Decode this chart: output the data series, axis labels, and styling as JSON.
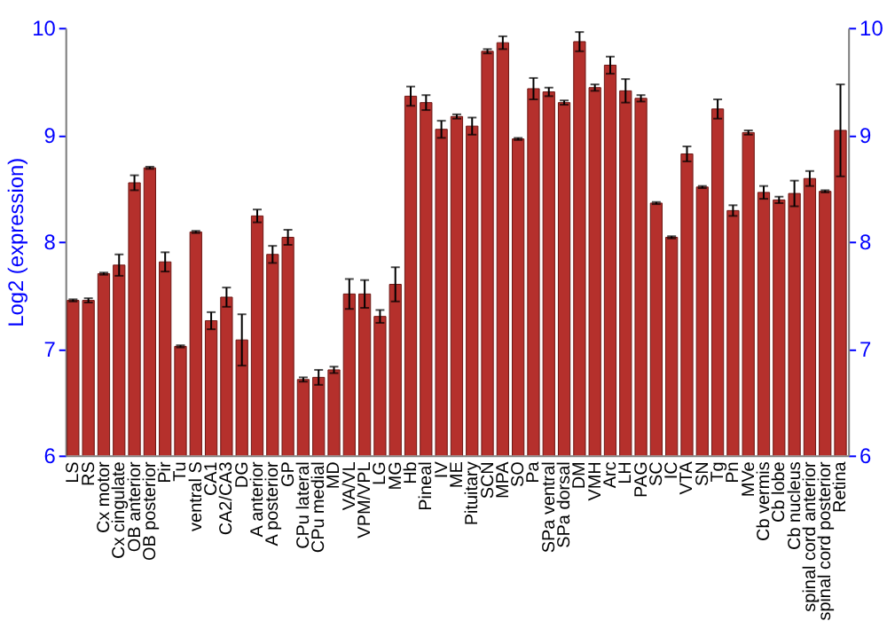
{
  "chart_data": {
    "type": "bar",
    "ylabel": "Log2 (expression)",
    "categories": [
      "LS",
      "RS",
      "Cx motor",
      "Cx cingulate",
      "OB anterior",
      "OB posterior",
      "Pir",
      "Tu",
      "ventral S",
      "CA1",
      "CA2/CA3",
      "DG",
      "A anterior",
      "A posterior",
      "GP",
      "CPu lateral",
      "CPu medial",
      "MD",
      "VA/VL",
      "VPM/VPL",
      "LG",
      "MG",
      "Hb",
      "Pineal",
      "IV",
      "ME",
      "Pituitary",
      "SCN",
      "MPA",
      "SO",
      "Pa",
      "SPa ventral",
      "SPa dorsal",
      "DM",
      "VMH",
      "Arc",
      "LH",
      "PAG",
      "SC",
      "IC",
      "VTA",
      "SN",
      "Tg",
      "Pn",
      "MVe",
      "Cb vermis",
      "Cb lobe",
      "Cb nucleus",
      "spinal cord anterior",
      "spinal cord posterior",
      "Retina"
    ],
    "values": [
      7.45,
      7.45,
      7.7,
      7.78,
      8.55,
      8.69,
      7.81,
      7.02,
      8.09,
      7.26,
      7.48,
      7.08,
      8.24,
      7.88,
      8.04,
      6.71,
      6.73,
      6.8,
      7.51,
      7.51,
      7.3,
      7.6,
      9.36,
      9.3,
      9.05,
      9.17,
      9.08,
      9.78,
      9.86,
      8.96,
      9.43,
      9.4,
      9.3,
      9.87,
      9.44,
      9.65,
      9.41,
      9.34,
      8.36,
      8.04,
      8.82,
      8.51,
      9.24,
      8.29,
      9.02,
      8.46,
      8.39,
      8.45,
      8.59,
      8.47,
      9.04
    ],
    "errors": [
      0.01,
      0.02,
      0.01,
      0.1,
      0.07,
      0.01,
      0.09,
      0.01,
      0.01,
      0.08,
      0.09,
      0.24,
      0.06,
      0.08,
      0.07,
      0.02,
      0.07,
      0.03,
      0.14,
      0.13,
      0.06,
      0.16,
      0.09,
      0.07,
      0.08,
      0.02,
      0.08,
      0.02,
      0.06,
      0.01,
      0.1,
      0.04,
      0.02,
      0.09,
      0.03,
      0.08,
      0.11,
      0.03,
      0.01,
      0.01,
      0.07,
      0.01,
      0.09,
      0.05,
      0.02,
      0.06,
      0.03,
      0.12,
      0.07,
      0.01,
      0.43
    ],
    "color": "#b5302c",
    "ylim": [
      6,
      10
    ],
    "yticks": [
      6,
      7,
      8,
      9,
      10
    ],
    "y2lim": [
      6,
      10
    ],
    "y2ticks": [
      6,
      7,
      8,
      9,
      10
    ],
    "grid": "y"
  }
}
